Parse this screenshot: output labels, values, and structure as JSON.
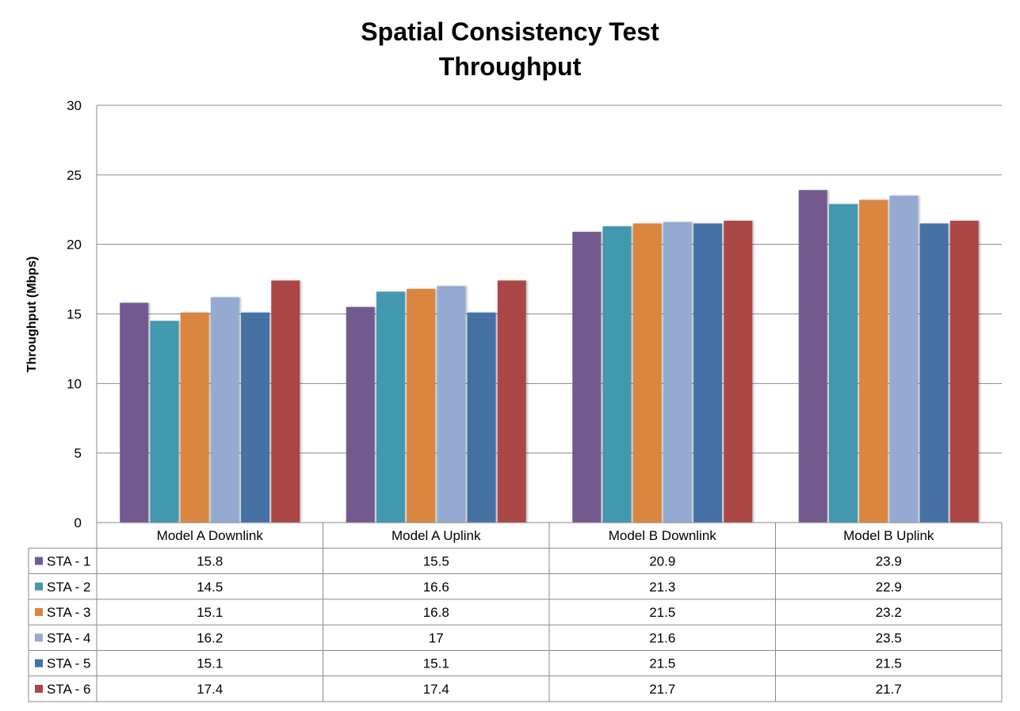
{
  "chart_data": {
    "type": "bar",
    "title": [
      "Spatial Consistency Test",
      "Throughput"
    ],
    "ylabel": "Throughput  (Mbps)",
    "ylim": [
      0,
      30
    ],
    "yticks": [
      0,
      5,
      10,
      15,
      20,
      25,
      30
    ],
    "grid": true,
    "legend": "data-table-below",
    "categories": [
      "Model A Downlink",
      "Model A Uplink",
      "Model B Downlink",
      "Model B Uplink"
    ],
    "series": [
      {
        "name": "STA - 1",
        "color": "#735A8E",
        "values": [
          15.8,
          15.5,
          20.9,
          23.9
        ],
        "labels": [
          "15.8",
          "15.5",
          "20.9",
          "23.9"
        ]
      },
      {
        "name": "STA - 2",
        "color": "#4398AE",
        "values": [
          14.5,
          16.6,
          21.3,
          22.9
        ],
        "labels": [
          "14.5",
          "16.6",
          "21.3",
          "22.9"
        ]
      },
      {
        "name": "STA - 3",
        "color": "#DA8540",
        "values": [
          15.1,
          16.8,
          21.5,
          23.2
        ],
        "labels": [
          "15.1",
          "16.8",
          "21.5",
          "23.2"
        ]
      },
      {
        "name": "STA - 4",
        "color": "#94AAD2",
        "values": [
          16.2,
          17,
          21.6,
          23.5
        ],
        "labels": [
          "16.2",
          "17",
          "21.6",
          "23.5"
        ]
      },
      {
        "name": "STA - 5",
        "color": "#4571A5",
        "values": [
          15.1,
          15.1,
          21.5,
          21.5
        ],
        "labels": [
          "15.1",
          "15.1",
          "21.5",
          "21.5"
        ]
      },
      {
        "name": "STA - 6",
        "color": "#AA4645",
        "values": [
          17.4,
          17.4,
          21.7,
          21.7
        ],
        "labels": [
          "17.4",
          "17.4",
          "21.7",
          "21.7"
        ]
      }
    ]
  }
}
